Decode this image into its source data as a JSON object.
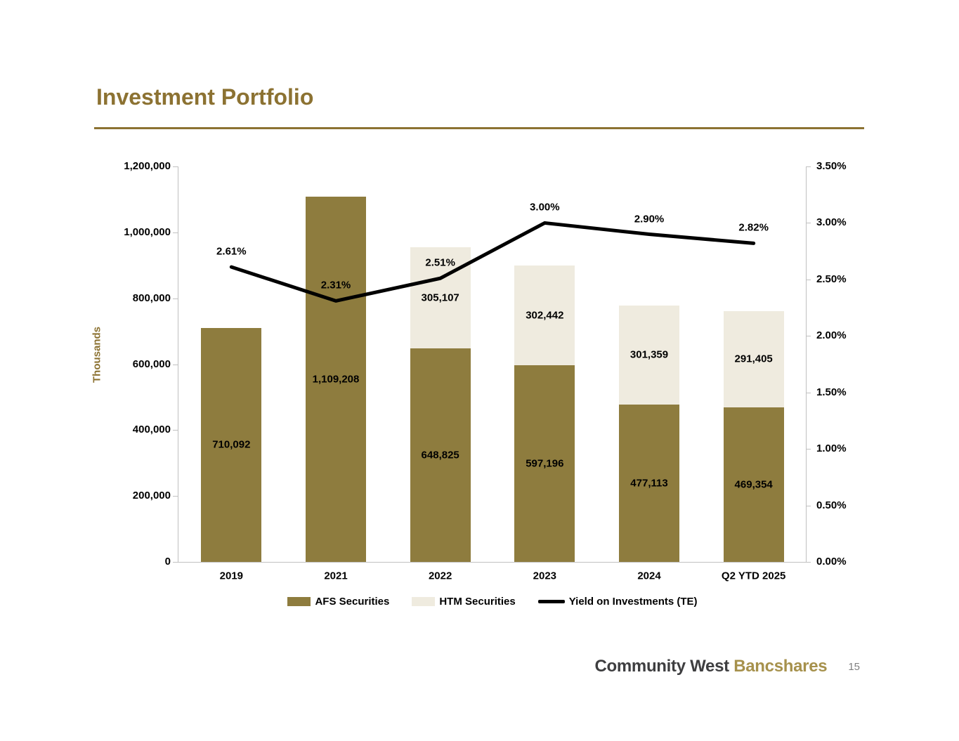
{
  "title": "Investment Portfolio",
  "colors": {
    "title_gold": "#8C7232",
    "afs_bar": "#8E7C3E",
    "htm_bar": "#EFEBDF",
    "yield_line": "#000000",
    "axis_line": "#C0C0C0",
    "chart_text": "#000000",
    "brand_dark": "#3E3E40",
    "brand_gold": "#A6914C",
    "page_number_gray": "#808080"
  },
  "chart_data": {
    "type": "combo: stacked bar + line",
    "categories": [
      "2019",
      "2021",
      "2022",
      "2023",
      "2024",
      "Q2 YTD 2025"
    ],
    "series": [
      {
        "name": "AFS Securities",
        "type": "bar",
        "axis": "left",
        "color": "#8E7C3E",
        "values": [
          710092,
          1109208,
          648825,
          597196,
          477113,
          469354
        ],
        "labels": [
          "710,092",
          "1,109,208",
          "648,825",
          "597,196",
          "477,113",
          "469,354"
        ]
      },
      {
        "name": "HTM Securities",
        "type": "bar",
        "axis": "left",
        "color": "#EFEBDF",
        "values": [
          0,
          0,
          305107,
          302442,
          301359,
          291405
        ],
        "labels": [
          "",
          "",
          "305,107",
          "302,442",
          "301,359",
          "291,405"
        ]
      },
      {
        "name": "Yield on Investments (TE)",
        "type": "line",
        "axis": "right",
        "color": "#000000",
        "values": [
          2.61,
          2.31,
          2.51,
          3.0,
          2.9,
          2.82
        ],
        "labels": [
          "2.61%",
          "2.31%",
          "2.51%",
          "3.00%",
          "2.90%",
          "2.82%"
        ]
      }
    ],
    "left_axis": {
      "title": "Thousands",
      "min": 0,
      "max": 1200000,
      "step": 200000,
      "tick_labels": [
        "0",
        "200,000",
        "400,000",
        "600,000",
        "800,000",
        "1,000,000",
        "1,200,000"
      ]
    },
    "right_axis": {
      "min": 0,
      "max": 3.5,
      "step": 0.5,
      "tick_labels": [
        "0.00%",
        "0.50%",
        "1.00%",
        "1.50%",
        "2.00%",
        "2.50%",
        "3.00%",
        "3.50%"
      ]
    },
    "bars_stacked": true,
    "grid": false,
    "legend_position": "bottom"
  },
  "footer": {
    "brand_primary": "Community West",
    "brand_secondary": "Bancshares",
    "page_number": "15"
  }
}
